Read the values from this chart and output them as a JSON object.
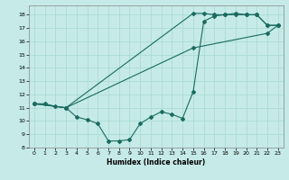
{
  "xlabel": "Humidex (Indice chaleur)",
  "ylabel": "",
  "bg_color": "#c5eae7",
  "grid_color": "#a8d8d4",
  "line_color": "#1a6b60",
  "xlim": [
    -0.5,
    23.5
  ],
  "ylim": [
    8,
    18.7
  ],
  "yticks": [
    8,
    9,
    10,
    11,
    12,
    13,
    14,
    15,
    16,
    17,
    18
  ],
  "xticks": [
    0,
    1,
    2,
    3,
    4,
    5,
    6,
    7,
    8,
    9,
    10,
    11,
    12,
    13,
    14,
    15,
    16,
    17,
    18,
    19,
    20,
    21,
    22,
    23
  ],
  "series1_x": [
    0,
    1,
    2,
    3,
    4,
    5,
    6,
    7,
    8,
    9,
    10,
    11,
    12,
    13,
    14,
    15,
    16,
    17,
    18,
    19,
    20,
    21,
    22,
    23
  ],
  "series1_y": [
    11.3,
    11.3,
    11.1,
    11.0,
    10.3,
    10.1,
    9.8,
    8.5,
    8.5,
    8.6,
    9.8,
    10.3,
    10.7,
    10.5,
    10.2,
    12.2,
    17.5,
    17.9,
    18.0,
    18.0,
    18.0,
    18.0,
    17.2,
    17.2
  ],
  "series2_x": [
    0,
    3,
    15,
    16,
    17,
    18,
    19,
    20,
    21,
    22,
    23
  ],
  "series2_y": [
    11.3,
    11.0,
    18.1,
    18.1,
    18.0,
    18.0,
    18.1,
    18.0,
    18.0,
    17.2,
    17.2
  ],
  "series3_x": [
    0,
    3,
    15,
    22,
    23
  ],
  "series3_y": [
    11.3,
    11.0,
    15.5,
    16.6,
    17.2
  ]
}
